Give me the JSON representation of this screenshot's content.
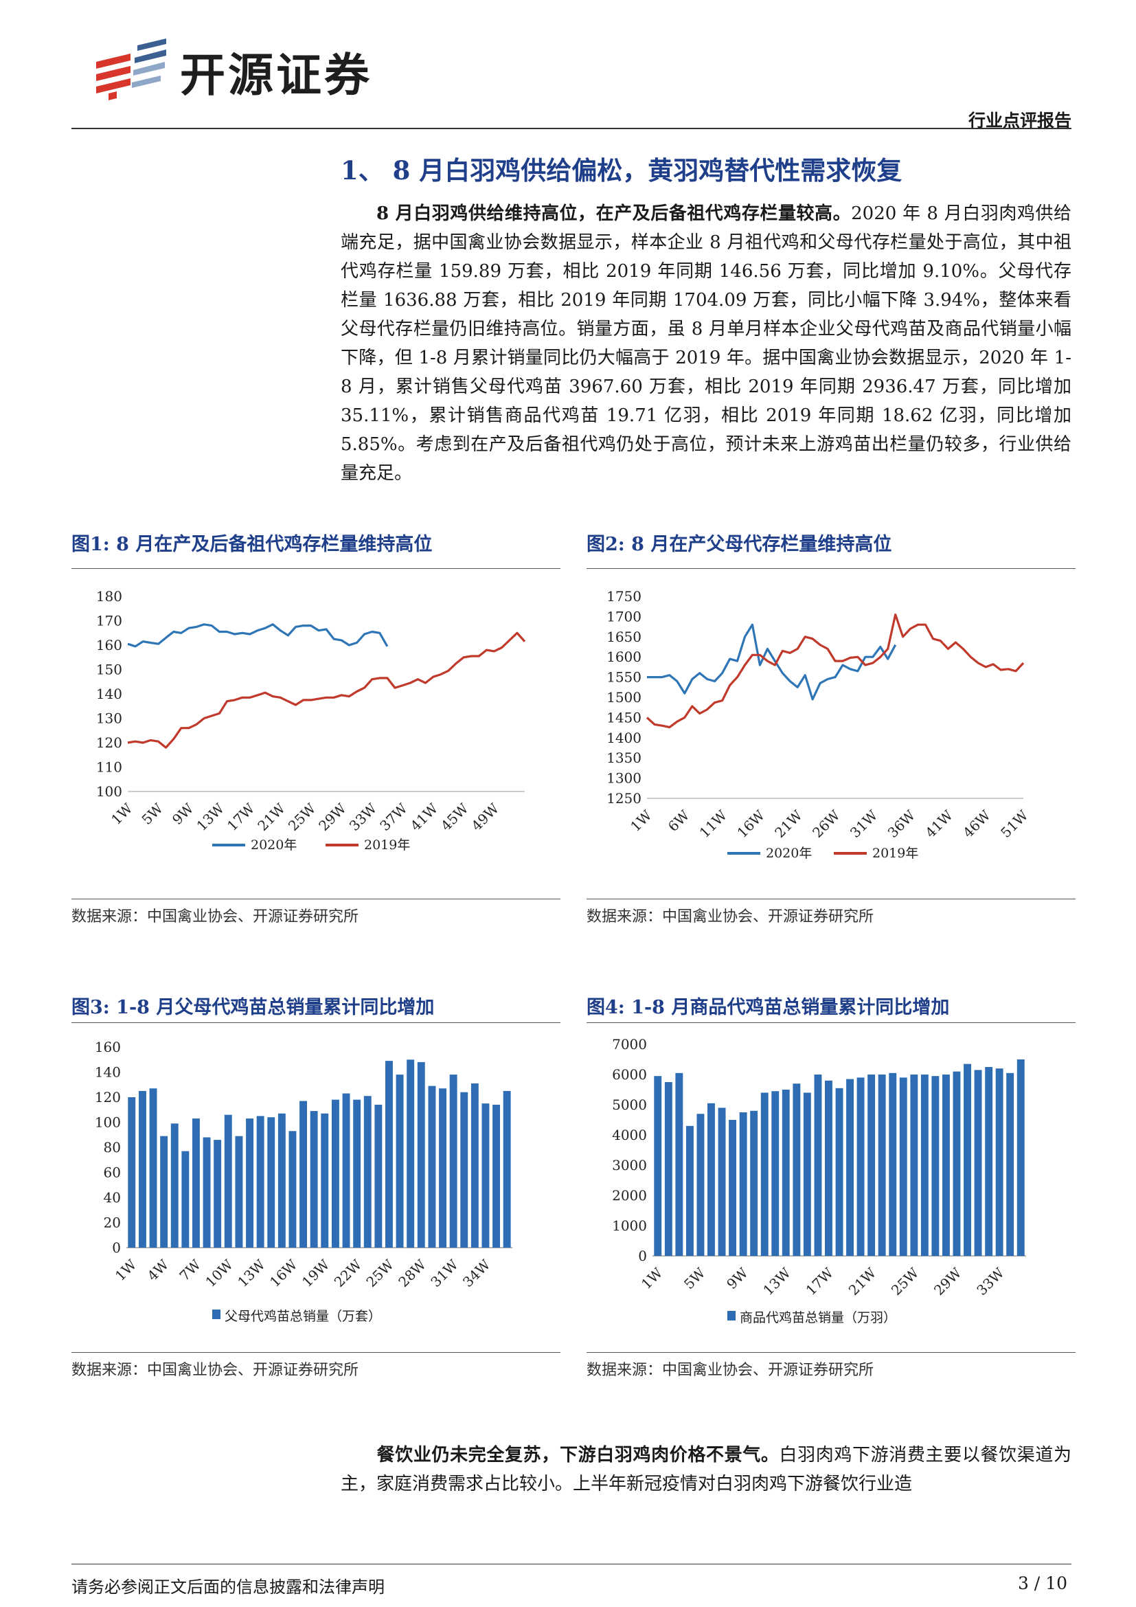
{
  "header": {
    "company": "开源证券",
    "report_type": "行业点评报告"
  },
  "section": {
    "title": "1、 8 月白羽鸡供给偏松，黄羽鸡替代性需求恢复"
  },
  "para1": {
    "lead": "8 月白羽鸡供给维持高位，在产及后备祖代鸡存栏量较高。",
    "body": "2020 年 8 月白羽肉鸡供给端充足，据中国禽业协会数据显示，样本企业 8 月祖代鸡和父母代存栏量处于高位，其中祖代鸡存栏量 159.89 万套，相比 2019 年同期 146.56 万套，同比增加 9.10%。父母代存栏量 1636.88 万套，相比 2019 年同期 1704.09 万套，同比小幅下降 3.94%，整体来看父母代存栏量仍旧维持高位。销量方面，虽 8 月单月样本企业父母代鸡苗及商品代销量小幅下降，但 1-8 月累计销量同比仍大幅高于 2019 年。据中国禽业协会数据显示，2020 年 1-8 月，累计销售父母代鸡苗 3967.60 万套，相比 2019 年同期 2936.47 万套，同比增加 35.11%，累计销售商品代鸡苗 19.71 亿羽，相比 2019 年同期 18.62 亿羽，同比增加 5.85%。考虑到在产及后备祖代鸡仍处于高位，预计未来上游鸡苗出栏量仍较多，行业供给量充足。"
  },
  "para2": {
    "lead": "餐饮业仍未完全复苏，下游白羽鸡肉价格不景气。",
    "body": "白羽肉鸡下游消费主要以餐饮渠道为主，家庭消费需求占比较小。上半年新冠疫情对白羽肉鸡下游餐饮行业造"
  },
  "colors": {
    "blue": "#2e75b6",
    "red": "#c0392b",
    "bar": "#2e6db3",
    "title_blue": "#1f3f8a"
  },
  "figures": [
    {
      "title": "图1:  8 月在产及后备祖代鸡存栏量维持高位",
      "source": "数据来源：中国禽业协会、开源证券研究所"
    },
    {
      "title": "图2:  8 月在产父母代存栏量维持高位",
      "source": "数据来源：中国禽业协会、开源证券研究所"
    },
    {
      "title": "图3:  1-8 月父母代鸡苗总销量累计同比增加",
      "source": "数据来源：中国禽业协会、开源证券研究所"
    },
    {
      "title": "图4:  1-8 月商品代鸡苗总销量累计同比增加",
      "source": "数据来源：中国禽业协会、开源证券研究所"
    }
  ],
  "chart_data": [
    {
      "type": "line",
      "ylim": [
        100,
        180
      ],
      "yticks": [
        "180",
        "170",
        "160",
        "150",
        "140",
        "130",
        "120",
        "110",
        "100"
      ],
      "xticks": [
        "1W",
        "5W",
        "9W",
        "13W",
        "17W",
        "21W",
        "25W",
        "29W",
        "33W",
        "37W",
        "41W",
        "45W",
        "49W"
      ],
      "series": [
        {
          "name": "2020年",
          "color": "#2e75b6",
          "values": [
            160.5,
            159.5,
            161.5,
            161.0,
            160.5,
            163.0,
            165.5,
            165.0,
            167.0,
            167.5,
            168.5,
            168.0,
            165.5,
            165.5,
            164.5,
            165.0,
            164.5,
            166.0,
            167.0,
            168.5,
            166.0,
            164.0,
            167.5,
            168.0,
            168.0,
            166.0,
            166.5,
            162.5,
            162.0,
            160.0,
            161.0,
            164.5,
            165.5,
            165.0,
            159.5
          ]
        },
        {
          "name": "2019年",
          "color": "#c0392b",
          "values": [
            120.0,
            120.5,
            120.0,
            121.0,
            120.5,
            118.0,
            121.5,
            126.0,
            126.0,
            127.5,
            130.0,
            131.0,
            132.0,
            137.0,
            137.5,
            138.5,
            138.5,
            139.5,
            140.5,
            139.0,
            138.5,
            137.0,
            135.5,
            137.5,
            137.5,
            138.0,
            138.5,
            138.5,
            139.5,
            139.0,
            141.0,
            142.5,
            146.0,
            146.5,
            146.5,
            142.5,
            143.5,
            144.5,
            146.0,
            144.5,
            147.0,
            148.0,
            149.5,
            152.5,
            155.0,
            155.5,
            155.5,
            158.0,
            157.5,
            159.0,
            162.0,
            165.0,
            161.5
          ]
        }
      ]
    },
    {
      "type": "line",
      "ylim": [
        1250,
        1750
      ],
      "yticks": [
        "1750",
        "1700",
        "1650",
        "1600",
        "1550",
        "1500",
        "1450",
        "1400",
        "1350",
        "1300",
        "1250"
      ],
      "xticks": [
        "1W",
        "6W",
        "11W",
        "16W",
        "21W",
        "26W",
        "31W",
        "36W",
        "41W",
        "46W",
        "51W"
      ],
      "series": [
        {
          "name": "2020年",
          "color": "#2e75b6",
          "values": [
            1550,
            1550,
            1550,
            1555,
            1540,
            1510,
            1545,
            1560,
            1545,
            1540,
            1560,
            1595,
            1590,
            1650,
            1680,
            1580,
            1620,
            1590,
            1560,
            1540,
            1525,
            1555,
            1495,
            1535,
            1545,
            1550,
            1580,
            1570,
            1565,
            1600,
            1600,
            1625,
            1595,
            1630
          ]
        },
        {
          "name": "2019年",
          "color": "#c0392b",
          "values": [
            1450,
            1433,
            1430,
            1426,
            1440,
            1450,
            1478,
            1460,
            1470,
            1487,
            1492,
            1530,
            1550,
            1580,
            1605,
            1605,
            1590,
            1580,
            1615,
            1610,
            1620,
            1650,
            1645,
            1630,
            1620,
            1590,
            1590,
            1598,
            1600,
            1580,
            1585,
            1600,
            1620,
            1705,
            1650,
            1670,
            1680,
            1680,
            1645,
            1640,
            1620,
            1636,
            1620,
            1600,
            1585,
            1575,
            1582,
            1568,
            1570,
            1565,
            1585
          ]
        }
      ]
    },
    {
      "type": "bar",
      "ylim": [
        0,
        160
      ],
      "yticks": [
        "160",
        "140",
        "120",
        "100",
        "80",
        "60",
        "40",
        "20",
        "0"
      ],
      "xticks": [
        "1W",
        "4W",
        "7W",
        "10W",
        "13W",
        "16W",
        "19W",
        "22W",
        "25W",
        "28W",
        "31W",
        "34W"
      ],
      "series": [
        {
          "name": "父母代鸡苗总销量（万套）",
          "color": "#2e6db3",
          "values": [
            120,
            125,
            127,
            89,
            99,
            77,
            103,
            88,
            86,
            106,
            89,
            103,
            105,
            104,
            107,
            93,
            117,
            109,
            107,
            118,
            123,
            118,
            121,
            114,
            149,
            138,
            150,
            148,
            129,
            127,
            138,
            124,
            131,
            115,
            114,
            125
          ]
        }
      ]
    },
    {
      "type": "bar",
      "ylim": [
        0,
        7000
      ],
      "yticks": [
        "7000",
        "6000",
        "5000",
        "4000",
        "3000",
        "2000",
        "1000",
        "0"
      ],
      "xticks": [
        "1W",
        "5W",
        "9W",
        "13W",
        "17W",
        "21W",
        "25W",
        "29W",
        "33W"
      ],
      "series": [
        {
          "name": "商品代鸡苗总销量（万羽）",
          "color": "#2e6db3",
          "values": [
            5950,
            5750,
            6050,
            4300,
            4700,
            5050,
            4900,
            4500,
            4750,
            4800,
            5400,
            5450,
            5500,
            5700,
            5400,
            6000,
            5800,
            5550,
            5850,
            5900,
            6000,
            6000,
            6050,
            5900,
            6000,
            6000,
            5950,
            6000,
            6100,
            6350,
            6150,
            6250,
            6200,
            6050,
            6500
          ]
        }
      ]
    }
  ],
  "footer": {
    "disclaimer": "请务必参阅正文后面的信息披露和法律声明",
    "page": "3 / 10"
  }
}
